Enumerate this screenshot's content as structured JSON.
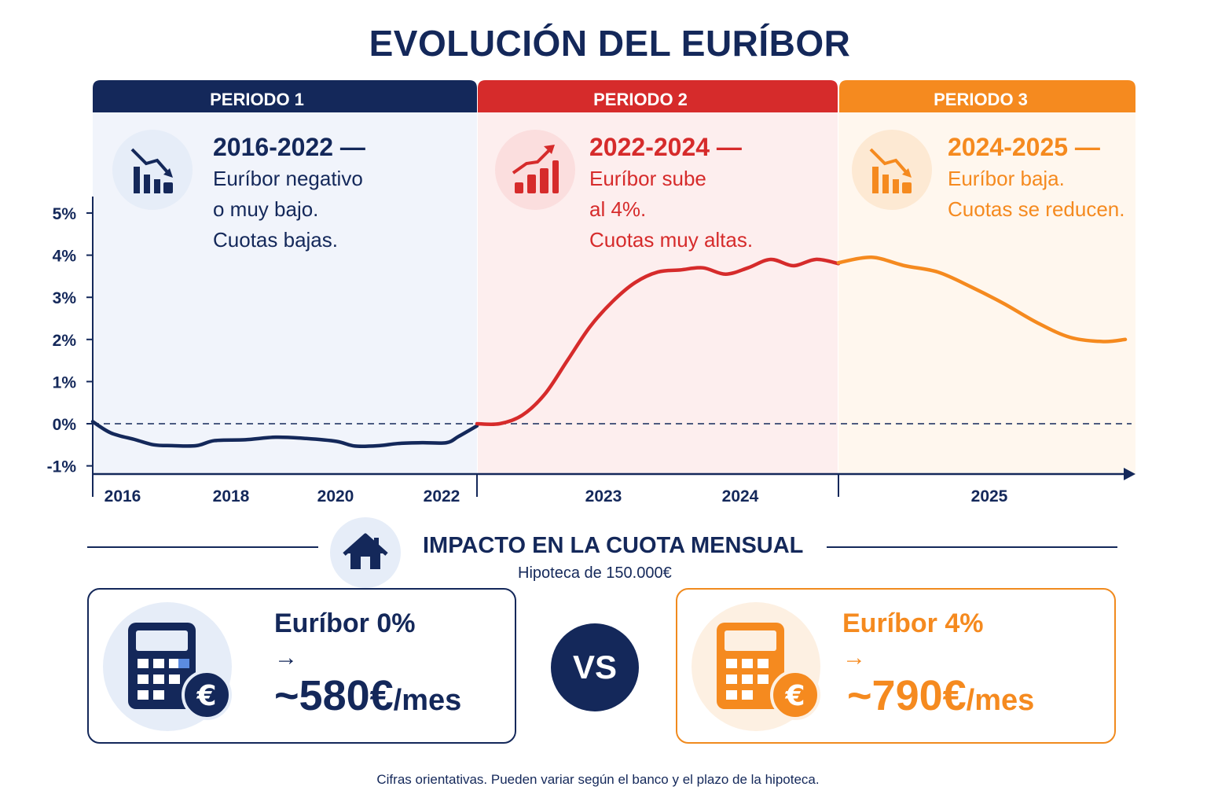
{
  "title": "EVOLUCIÓN DEL EURÍBOR",
  "colors": {
    "navy": "#14285a",
    "red": "#d62b2b",
    "orange": "#f58a1f"
  },
  "periods": [
    {
      "tab": "PERIODO 1",
      "title": "2016-2022 —",
      "lines": [
        "Euríbor negativo",
        "o muy bajo.",
        "Cuotas bajas."
      ],
      "icon": "chart-down-icon",
      "color": "#14285a"
    },
    {
      "tab": "PERIODO 2",
      "title": "2022-2024 —",
      "lines": [
        "Euríbor sube",
        "al 4%.",
        "Cuotas muy altas."
      ],
      "icon": "chart-up-icon",
      "color": "#d62b2b"
    },
    {
      "tab": "PERIODO 3",
      "title": "2024-2025 —",
      "lines": [
        "Euríbor baja.",
        "Cuotas se reducen."
      ],
      "icon": "chart-down-icon",
      "color": "#f58a1f"
    }
  ],
  "chart_data": {
    "type": "line",
    "title": "EVOLUCIÓN DEL EURÍBOR",
    "xlabel": "",
    "ylabel": "",
    "y_ticks": [
      "5%",
      "4%",
      "3%",
      "2%",
      "1%",
      "0%",
      "-1%"
    ],
    "x_ticks": [
      "2016",
      "2018",
      "2020",
      "2022",
      "2023",
      "2024",
      "2025"
    ],
    "ylim": [
      -1,
      5
    ],
    "grid": false,
    "reference_line": {
      "y": 0,
      "style": "dashed"
    },
    "series": [
      {
        "period": "PERIODO 1",
        "color": "#14285a",
        "x": [
          2016.0,
          2016.3,
          2016.7,
          2017.0,
          2017.3,
          2017.7,
          2018.0,
          2018.5,
          2019.0,
          2019.5,
          2020.0,
          2020.3,
          2020.7,
          2021.0,
          2021.4,
          2021.8,
          2022.0,
          2022.3
        ],
        "y": [
          0.05,
          -0.22,
          -0.38,
          -0.5,
          -0.52,
          -0.52,
          -0.4,
          -0.38,
          -0.32,
          -0.35,
          -0.42,
          -0.53,
          -0.52,
          -0.47,
          -0.45,
          -0.45,
          -0.3,
          -0.05
        ]
      },
      {
        "period": "PERIODO 2",
        "color": "#d62b2b",
        "x": [
          2022.3,
          2022.45,
          2022.6,
          2022.75,
          2022.9,
          2023.05,
          2023.2,
          2023.35,
          2023.5,
          2023.65,
          2023.8,
          2023.95,
          2024.1,
          2024.25,
          2024.4,
          2024.55,
          2024.7
        ],
        "y": [
          0.0,
          0.0,
          0.2,
          0.7,
          1.5,
          2.3,
          2.9,
          3.35,
          3.6,
          3.65,
          3.7,
          3.55,
          3.7,
          3.9,
          3.75,
          3.9,
          3.8
        ]
      },
      {
        "period": "PERIODO 3",
        "color": "#f58a1f",
        "x": [
          2024.7,
          2024.85,
          2025.0,
          2025.15,
          2025.3,
          2025.45,
          2025.6,
          2025.75,
          2025.9,
          2026.0
        ],
        "y": [
          3.82,
          3.95,
          3.75,
          3.6,
          3.25,
          2.85,
          2.4,
          2.05,
          1.95,
          2.0
        ]
      }
    ]
  },
  "impact": {
    "title": "IMPACTO EN LA CUOTA MENSUAL",
    "subtitle": "Hipoteca de 150.000€",
    "icon": "house-icon",
    "vs": "VS",
    "left": {
      "label": "Euríbor 0%",
      "arrow": "→",
      "amount": "~580€",
      "unit": "/mes",
      "icon": "calculator-euro-icon"
    },
    "right": {
      "label": "Euríbor 4%",
      "arrow": "→",
      "amount": "~790€",
      "unit": "/mes",
      "icon": "calculator-euro-icon"
    }
  },
  "footnote": "Cifras orientativas. Pueden variar según el banco y el plazo de la hipoteca."
}
